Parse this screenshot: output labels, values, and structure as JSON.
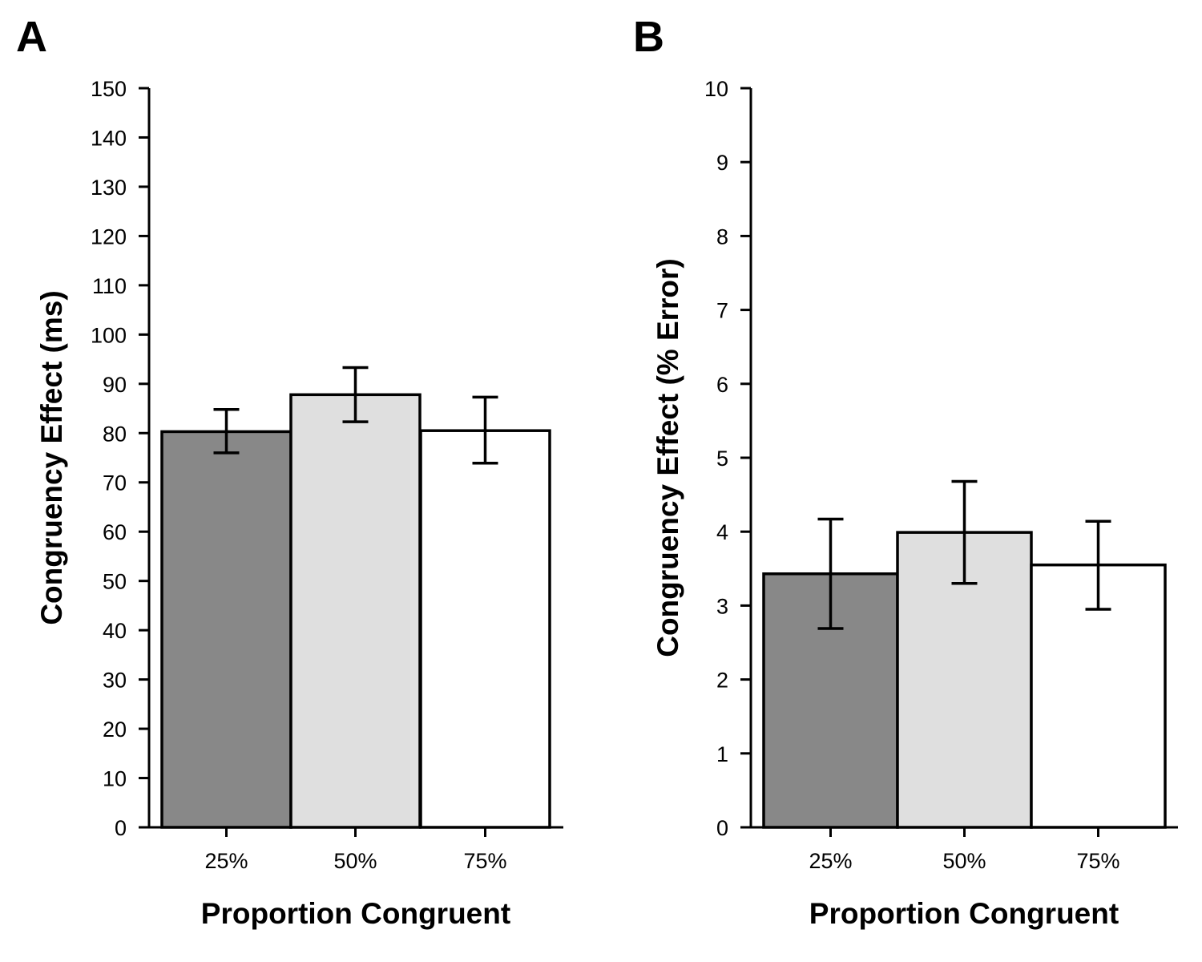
{
  "chart_data": [
    {
      "type": "bar",
      "panel_label": "A",
      "categories": [
        "25%",
        "50%",
        "75%"
      ],
      "values": [
        80.3,
        87.8,
        80.5
      ],
      "error_low": [
        76.0,
        82.3,
        73.9
      ],
      "error_high": [
        84.8,
        93.3,
        87.3
      ],
      "bar_colors": [
        "#888888",
        "#dfdfdf",
        "#ffffff"
      ],
      "xlabel": "Proportion Congruent",
      "ylabel": "Congruency Effect (ms)",
      "ylim": [
        0,
        150
      ],
      "yticks": [
        "0",
        "10",
        "20",
        "30",
        "40",
        "50",
        "60",
        "70",
        "80",
        "90",
        "100",
        "110",
        "120",
        "130",
        "140",
        "150"
      ],
      "grid": false,
      "legend": false
    },
    {
      "type": "bar",
      "panel_label": "B",
      "categories": [
        "25%",
        "50%",
        "75%"
      ],
      "values": [
        3.43,
        3.99,
        3.55
      ],
      "error_low": [
        2.69,
        3.3,
        2.95
      ],
      "error_high": [
        4.17,
        4.68,
        4.14
      ],
      "bar_colors": [
        "#888888",
        "#dfdfdf",
        "#ffffff"
      ],
      "xlabel": "Proportion Congruent",
      "ylabel": "Congruency Effect (% Error)",
      "ylim": [
        0,
        10
      ],
      "yticks": [
        "0",
        "1",
        "2",
        "3",
        "4",
        "5",
        "6",
        "7",
        "8",
        "9",
        "10"
      ],
      "grid": false,
      "legend": false
    }
  ]
}
